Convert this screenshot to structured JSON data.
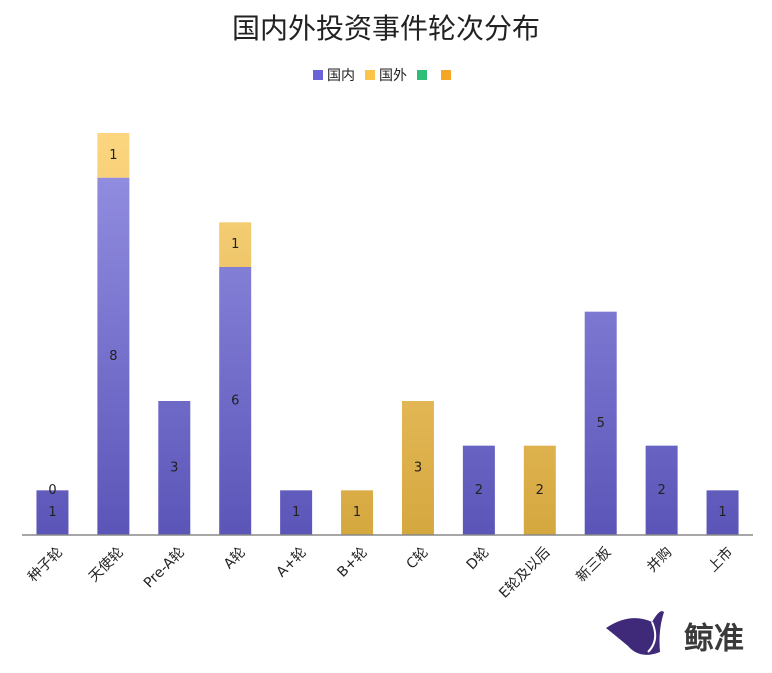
{
  "chart_data": {
    "type": "stacked_bar",
    "title": "国内外投资事件轮次分布",
    "categories": [
      "种子轮",
      "天使轮",
      "Pre-A轮",
      "A轮",
      "A+轮",
      "B+轮",
      "C轮",
      "D轮",
      "E轮及以后",
      "新三板",
      "并购",
      "上市"
    ],
    "series": [
      {
        "name": "国内",
        "color": "#6b64d8",
        "values": [
          1,
          8,
          3,
          6,
          1,
          0,
          0,
          2,
          0,
          5,
          2,
          1
        ],
        "value_labels": [
          "1",
          "8",
          "3",
          "6",
          "1",
          null,
          null,
          "2",
          null,
          "5",
          "2",
          "1"
        ]
      },
      {
        "name": "国外",
        "color": "#fbc54a",
        "values": [
          0,
          1,
          0,
          1,
          0,
          1,
          3,
          0,
          2,
          0,
          0,
          0
        ],
        "value_labels": [
          "0",
          "1",
          null,
          "1",
          null,
          "1",
          "3",
          null,
          "2",
          null,
          null,
          null
        ]
      },
      {
        "name": null,
        "color": "#2dbe78",
        "values": [
          null,
          null,
          null,
          null,
          null,
          null,
          null,
          null,
          null,
          null,
          null,
          null
        ]
      },
      {
        "name": null,
        "color": "#f5a623",
        "values": [
          null,
          null,
          null,
          null,
          null,
          null,
          null,
          null,
          null,
          null,
          null,
          null
        ]
      }
    ],
    "ylim": [
      0,
      9
    ],
    "legend": "top",
    "watermark": "鲸准"
  }
}
